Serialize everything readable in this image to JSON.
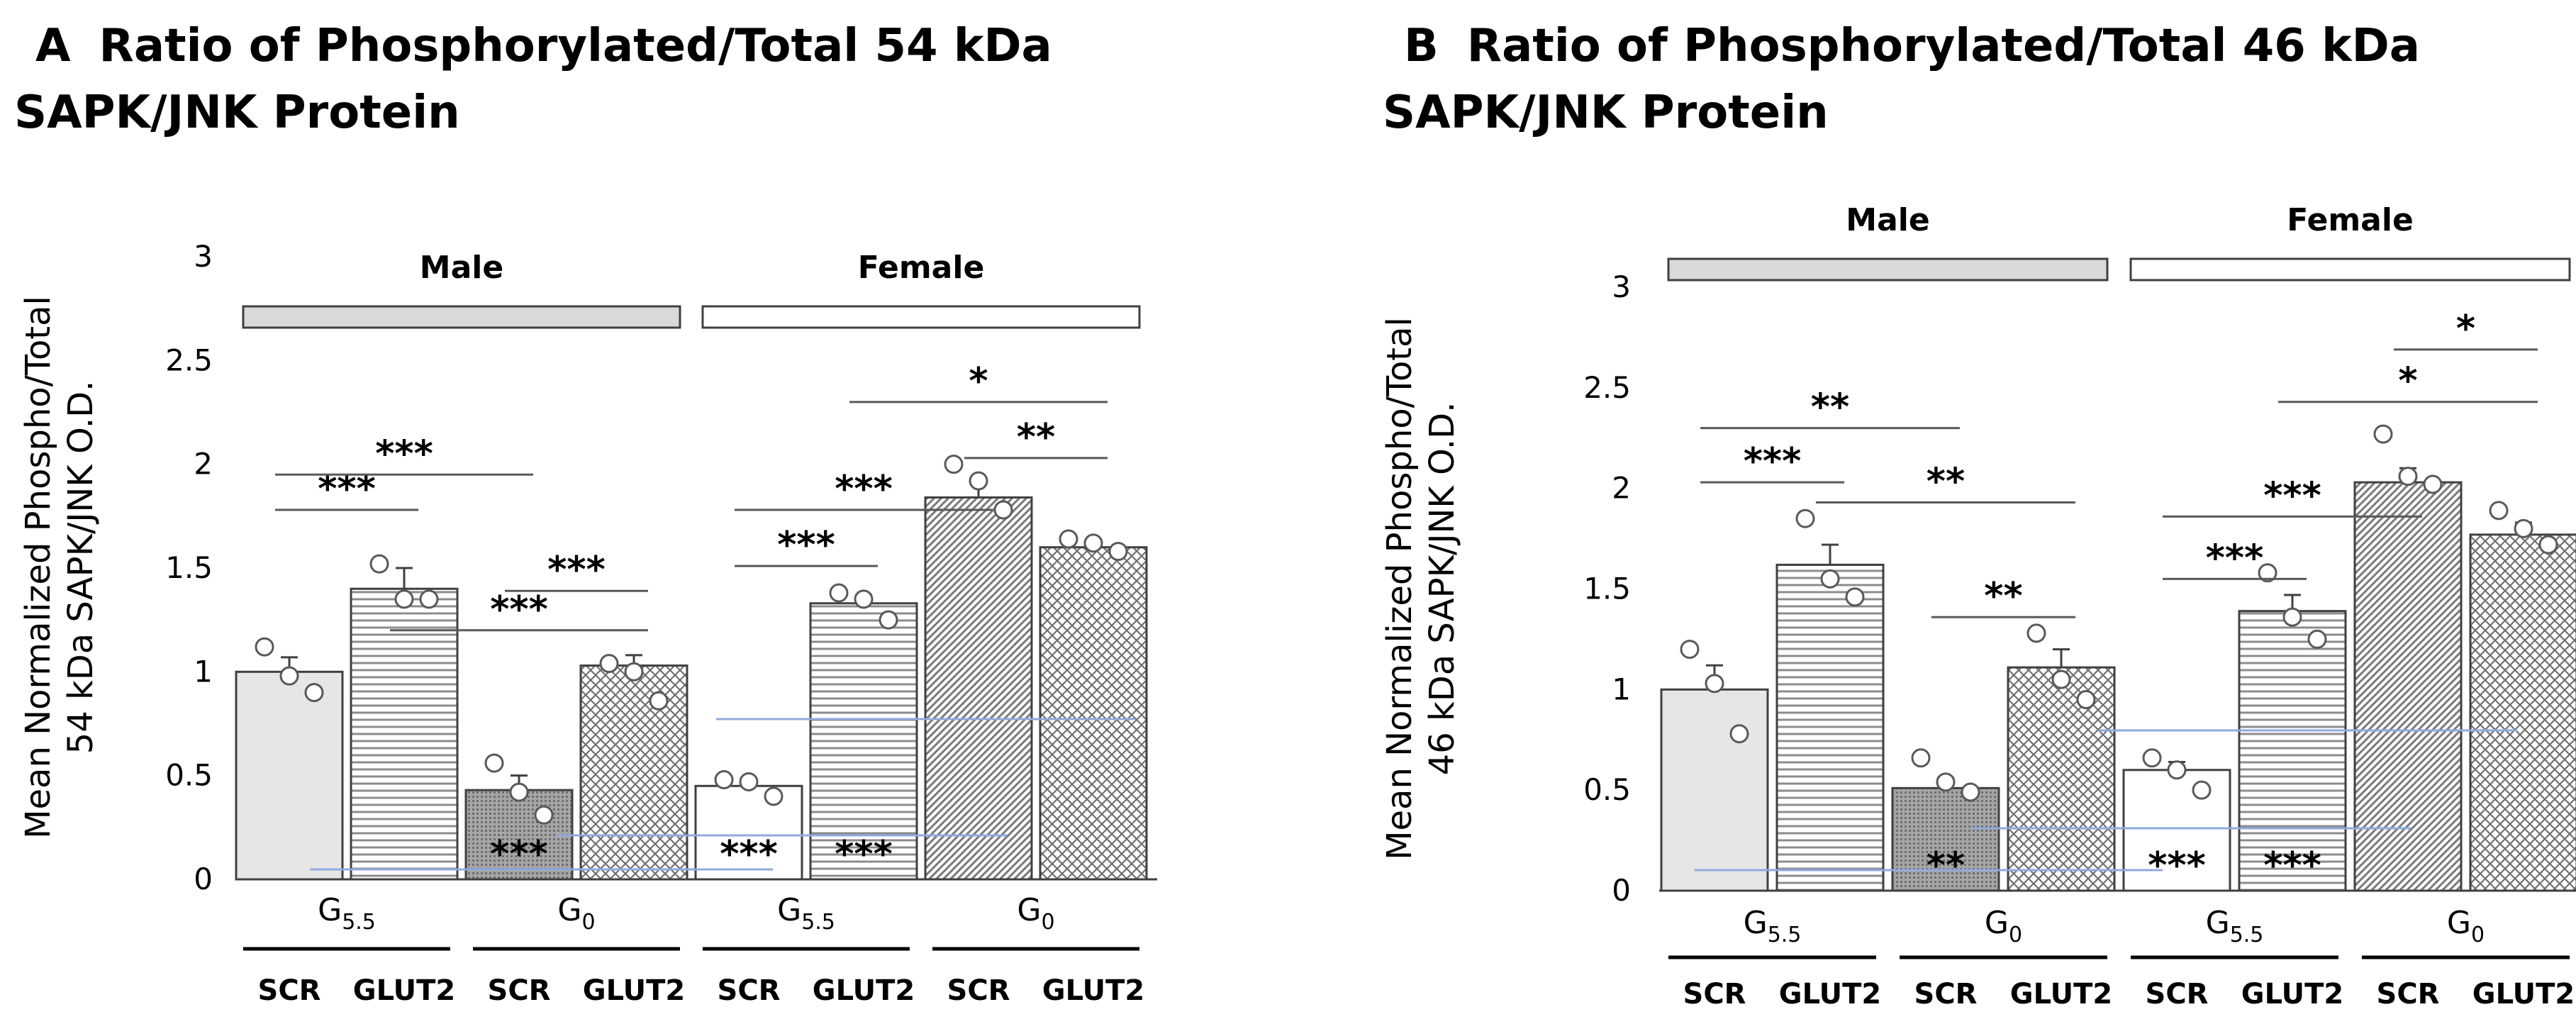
{
  "panels": [
    {
      "letter": "A",
      "title_line1": "Ratio of Phosphorylated/Total 54 kDa",
      "title_line2": "SAPK/JNK Protein"
    },
    {
      "letter": "B",
      "title_line1": "Ratio of Phosphorylated/Total 46 kDa",
      "title_line2": "SAPK/JNK Protein"
    }
  ],
  "colors": {
    "male_band": "#d9d9d9",
    "female_band": "#ffffff",
    "bar_stroke": "#404040",
    "overlay_line": "#8faadc"
  },
  "chart_data": [
    {
      "type": "bar",
      "title": "Ratio of Phosphorylated/Total 54 kDa SAPK/JNK Protein",
      "ylabel_line1": "Mean Normalized Phospho/Total",
      "ylabel_line2": "54 kDa SAPK/JNK O.D.",
      "ylim": [
        0,
        3
      ],
      "yticks": [
        "0",
        "0.5",
        "1",
        "1.5",
        "2",
        "2.5",
        "3"
      ],
      "group_labels": [
        "Male",
        "Female"
      ],
      "condition_labels": [
        {
          "main": "G",
          "sub": "5.5"
        },
        {
          "main": "G",
          "sub": "0"
        },
        {
          "main": "G",
          "sub": "5.5"
        },
        {
          "main": "G",
          "sub": "0"
        }
      ],
      "categories": [
        "SCR",
        "GLUT2",
        "SCR",
        "GLUT2",
        "SCR",
        "GLUT2",
        "SCR",
        "GLUT2"
      ],
      "values": [
        1.0,
        1.4,
        0.43,
        1.03,
        0.45,
        1.33,
        1.84,
        1.6
      ],
      "errors": [
        0.07,
        0.1,
        0.07,
        0.05,
        0.03,
        0.04,
        0.07,
        0.03
      ],
      "points": [
        [
          1.12,
          0.98,
          0.9
        ],
        [
          1.52,
          1.35,
          1.35
        ],
        [
          0.56,
          0.42,
          0.31
        ],
        [
          1.04,
          1.0,
          0.86
        ],
        [
          0.48,
          0.47,
          0.4
        ],
        [
          1.38,
          1.35,
          1.25
        ],
        [
          2.0,
          1.92,
          1.78
        ],
        [
          1.64,
          1.62,
          1.58
        ]
      ],
      "inner_annotations": [
        "",
        "",
        "***",
        "",
        "***",
        "***",
        "",
        ""
      ],
      "comparisons": [
        {
          "from": 0,
          "to": 1,
          "y": 1.78,
          "label": "***"
        },
        {
          "from": 0,
          "to": 2,
          "y": 1.95,
          "label": "***"
        },
        {
          "from": 1,
          "to": 3,
          "y": 1.2,
          "label": "***"
        },
        {
          "from": 2,
          "to": 3,
          "y": 1.39,
          "label": "***"
        },
        {
          "from": 4,
          "to": 5,
          "y": 1.51,
          "label": "***"
        },
        {
          "from": 4,
          "to": 6,
          "y": 1.78,
          "label": "***"
        },
        {
          "from": 5,
          "to": 7,
          "y": 2.3,
          "label": "*"
        },
        {
          "from": 6,
          "to": 7,
          "y": 2.03,
          "label": "**"
        }
      ]
    },
    {
      "type": "bar",
      "title": "Ratio of Phosphorylated/Total 46 kDa SAPK/JNK Protein",
      "ylabel_line1": "Mean Normalized Phospho/Total",
      "ylabel_line2": "46 kDa SAPK/JNK O.D.",
      "ylim": [
        0,
        3
      ],
      "yticks": [
        "0",
        "0.5",
        "1",
        "1.5",
        "2",
        "2.5",
        "3"
      ],
      "group_labels": [
        "Male",
        "Female"
      ],
      "condition_labels": [
        {
          "main": "G",
          "sub": "5.5"
        },
        {
          "main": "G",
          "sub": "0"
        },
        {
          "main": "G",
          "sub": "5.5"
        },
        {
          "main": "G",
          "sub": "0"
        }
      ],
      "categories": [
        "SCR",
        "GLUT2",
        "SCR",
        "GLUT2",
        "SCR",
        "GLUT2",
        "SCR",
        "GLUT2"
      ],
      "values": [
        1.0,
        1.62,
        0.51,
        1.11,
        0.6,
        1.39,
        2.03,
        1.77
      ],
      "errors": [
        0.12,
        0.1,
        0.05,
        0.09,
        0.04,
        0.08,
        0.07,
        0.06
      ],
      "points": [
        [
          1.2,
          1.03,
          0.78
        ],
        [
          1.85,
          1.55,
          1.46
        ],
        [
          0.66,
          0.54,
          0.49
        ],
        [
          1.28,
          1.05,
          0.95
        ],
        [
          0.66,
          0.6,
          0.5
        ],
        [
          1.58,
          1.36,
          1.25
        ],
        [
          2.27,
          2.06,
          2.02
        ],
        [
          1.89,
          1.8,
          1.72
        ]
      ],
      "inner_annotations": [
        "",
        "",
        "**",
        "",
        "***",
        "***",
        "",
        ""
      ],
      "comparisons": [
        {
          "from": 0,
          "to": 1,
          "y": 2.03,
          "label": "***"
        },
        {
          "from": 0,
          "to": 2,
          "y": 2.3,
          "label": "**"
        },
        {
          "from": 1,
          "to": 3,
          "y": 1.93,
          "label": "**"
        },
        {
          "from": 2,
          "to": 3,
          "y": 1.36,
          "label": "**"
        },
        {
          "from": 4,
          "to": 5,
          "y": 1.55,
          "label": "***"
        },
        {
          "from": 4,
          "to": 6,
          "y": 1.86,
          "label": "***"
        },
        {
          "from": 5,
          "to": 7,
          "y": 2.43,
          "label": "*"
        },
        {
          "from": 6,
          "to": 7,
          "y": 2.69,
          "label": "*"
        }
      ]
    }
  ]
}
